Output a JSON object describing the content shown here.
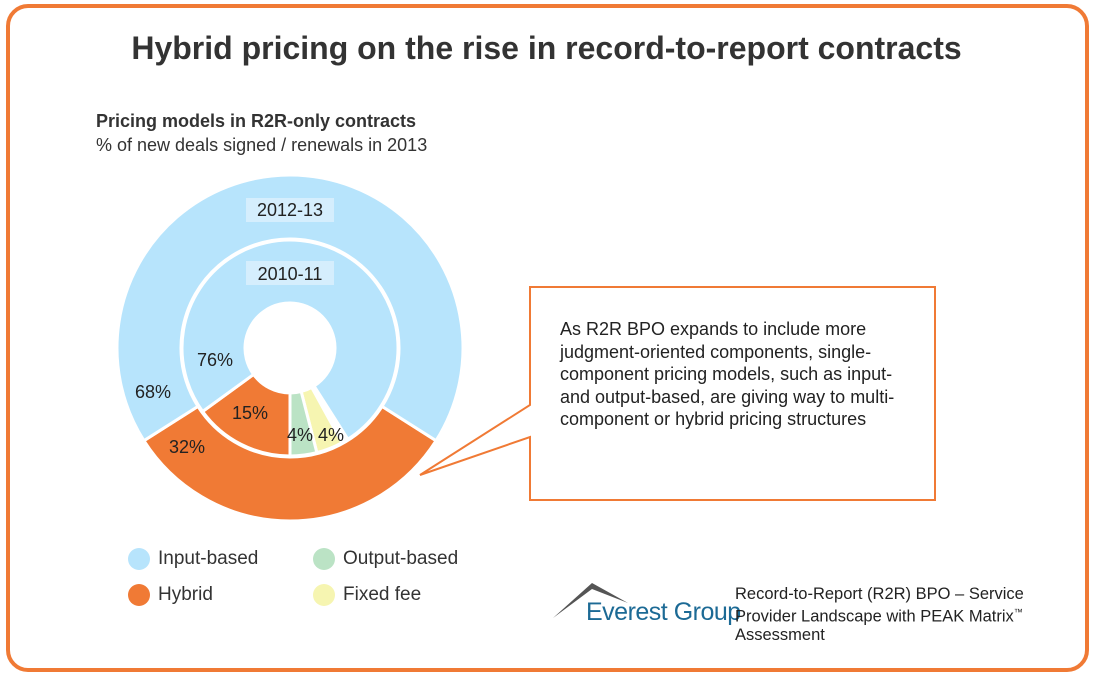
{
  "title": "Hybrid pricing on the rise in record-to-report contracts",
  "subtitle_bold": "Pricing models in R2R-only contracts",
  "subtitle": "% of new deals signed / renewals in 2013",
  "colors": {
    "Input-based": "#b7e4fc",
    "Hybrid": "#f07a35",
    "Output-based": "#bbe3c5",
    "Fixed fee": "#f6f5b1"
  },
  "chart_data": {
    "type": "donut",
    "title": "Pricing models in R2R-only contracts",
    "subtitle": "% of new deals signed / renewals in 2013",
    "rings": [
      {
        "name": "2012-13",
        "segments": [
          {
            "label": "Input-based",
            "value": 68
          },
          {
            "label": "Hybrid",
            "value": 32
          }
        ]
      },
      {
        "name": "2010-11",
        "segments": [
          {
            "label": "Input-based",
            "value": 76
          },
          {
            "label": "Fixed fee",
            "value": 4
          },
          {
            "label": "Output-based",
            "value": 4
          },
          {
            "label": "Hybrid",
            "value": 15
          }
        ]
      }
    ],
    "legend": [
      "Input-based",
      "Output-based",
      "Hybrid",
      "Fixed fee"
    ],
    "legend_placement": "bottom"
  },
  "labels": {
    "outer_input": "68%",
    "outer_hybrid": "32%",
    "inner_input": "76%",
    "inner_hybrid": "15%",
    "inner_output": "4%",
    "inner_fixed": "4%",
    "outer_ring": "2012-13",
    "inner_ring": "2010-11"
  },
  "callout": "As R2R BPO expands to include more judgment-oriented components, single-component pricing models, such as input- and output-based, are giving way to multi-component or hybrid pricing structures",
  "logo": "Everest Group",
  "source_line1": "Record-to-Report (R2R) BPO – Service Provider Landscape with PEAK Matrix",
  "source_tm": "™",
  "source_line2": "Assessment"
}
